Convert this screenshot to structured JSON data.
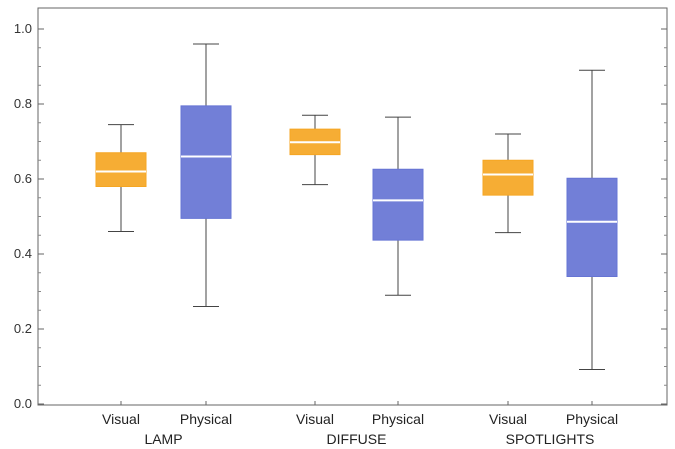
{
  "chart_data": {
    "type": "box",
    "title": "",
    "xlabel": "",
    "ylabel": "",
    "ylim": [
      0.0,
      1.0
    ],
    "yticks": [
      "0.0",
      "0.2",
      "0.4",
      "0.6",
      "0.8",
      "1.0"
    ],
    "grid": false,
    "groups": [
      {
        "label": "LAMP",
        "boxes": [
          {
            "label": "Visual",
            "min": 0.46,
            "q1": 0.58,
            "median": 0.62,
            "q3": 0.67,
            "max": 0.745,
            "color": "#f5a623"
          },
          {
            "label": "Physical",
            "min": 0.26,
            "q1": 0.495,
            "median": 0.66,
            "q3": 0.795,
            "max": 0.96,
            "color": "#6674d4"
          }
        ]
      },
      {
        "label": "DIFFUSE",
        "boxes": [
          {
            "label": "Visual",
            "min": 0.585,
            "q1": 0.665,
            "median": 0.698,
            "q3": 0.733,
            "max": 0.77,
            "color": "#f5a623"
          },
          {
            "label": "Physical",
            "min": 0.29,
            "q1": 0.437,
            "median": 0.543,
            "q3": 0.626,
            "max": 0.765,
            "color": "#6674d4"
          }
        ]
      },
      {
        "label": "SPOTLIGHTS",
        "boxes": [
          {
            "label": "Visual",
            "min": 0.457,
            "q1": 0.557,
            "median": 0.612,
            "q3": 0.65,
            "max": 0.72,
            "color": "#f5a623"
          },
          {
            "label": "Physical",
            "min": 0.092,
            "q1": 0.34,
            "median": 0.486,
            "q3": 0.602,
            "max": 0.89,
            "color": "#6674d4"
          }
        ]
      }
    ]
  }
}
